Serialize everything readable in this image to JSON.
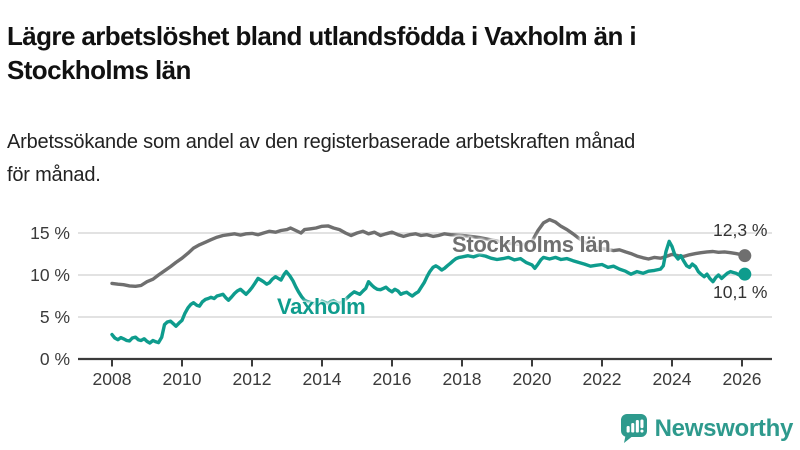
{
  "header": {
    "title_lines": [
      "Lägre arbetslöshet bland utlandsfödda i Vaxholm än i",
      "Stockholms län"
    ],
    "subtitle_lines": [
      "Arbetssökande som andel av den registerbaserade arbetskraften månad",
      "för månad."
    ]
  },
  "logo": {
    "text": "Newsworthy",
    "color": "#2e9a8d"
  },
  "colors": {
    "stockholm_line": "#6f6f6f",
    "vaxholm_line": "#0e9c8d",
    "gridline": "#d8d8d8",
    "axis": "#3b3b3b",
    "tick_label": "#3b3b3b"
  },
  "chart_data": {
    "type": "line",
    "title": "Lägre arbetslöshet bland utlandsfödda i Vaxholm än i Stockholms län",
    "subtitle": "Arbetssökande som andel av den registerbaserade arbetskraften månad för månad.",
    "xlabel": "",
    "ylabel": "",
    "unit": "%",
    "grid": "horizontal",
    "legend_position": "inline-labels",
    "xlim": [
      2007.0,
      2026.9
    ],
    "ylim": [
      0,
      17.5
    ],
    "x_ticks": [
      2008,
      2010,
      2012,
      2014,
      2016,
      2018,
      2020,
      2022,
      2024,
      2026
    ],
    "y_ticks": [
      0,
      5,
      10,
      15
    ],
    "y_tick_labels": [
      "0 %",
      "5 %",
      "10 %",
      "15 %"
    ],
    "series": [
      {
        "id": "stockholms-lan",
        "name": "Stockholms län",
        "color": "#6f6f6f",
        "end_label": "12,3 %",
        "end_value": 12.3,
        "points": [
          [
            2008.0,
            9.0
          ],
          [
            2008.17,
            8.9
          ],
          [
            2008.33,
            8.85
          ],
          [
            2008.5,
            8.7
          ],
          [
            2008.67,
            8.65
          ],
          [
            2008.83,
            8.75
          ],
          [
            2009.0,
            9.2
          ],
          [
            2009.17,
            9.5
          ],
          [
            2009.33,
            10.0
          ],
          [
            2009.5,
            10.5
          ],
          [
            2009.67,
            11.0
          ],
          [
            2009.83,
            11.5
          ],
          [
            2010.0,
            12.0
          ],
          [
            2010.17,
            12.6
          ],
          [
            2010.33,
            13.2
          ],
          [
            2010.5,
            13.6
          ],
          [
            2010.67,
            13.9
          ],
          [
            2010.83,
            14.2
          ],
          [
            2011.0,
            14.5
          ],
          [
            2011.17,
            14.7
          ],
          [
            2011.33,
            14.8
          ],
          [
            2011.5,
            14.9
          ],
          [
            2011.67,
            14.75
          ],
          [
            2011.83,
            14.9
          ],
          [
            2012.0,
            14.95
          ],
          [
            2012.17,
            14.8
          ],
          [
            2012.33,
            15.0
          ],
          [
            2012.5,
            15.2
          ],
          [
            2012.67,
            15.1
          ],
          [
            2012.83,
            15.3
          ],
          [
            2013.0,
            15.4
          ],
          [
            2013.1,
            15.6
          ],
          [
            2013.25,
            15.3
          ],
          [
            2013.4,
            15.0
          ],
          [
            2013.5,
            15.4
          ],
          [
            2013.67,
            15.5
          ],
          [
            2013.83,
            15.6
          ],
          [
            2014.0,
            15.8
          ],
          [
            2014.17,
            15.85
          ],
          [
            2014.33,
            15.6
          ],
          [
            2014.5,
            15.4
          ],
          [
            2014.67,
            15.0
          ],
          [
            2014.83,
            14.7
          ],
          [
            2015.0,
            15.0
          ],
          [
            2015.17,
            15.2
          ],
          [
            2015.33,
            14.9
          ],
          [
            2015.5,
            15.1
          ],
          [
            2015.67,
            14.7
          ],
          [
            2015.83,
            14.9
          ],
          [
            2016.0,
            15.1
          ],
          [
            2016.17,
            14.8
          ],
          [
            2016.33,
            14.6
          ],
          [
            2016.5,
            14.8
          ],
          [
            2016.67,
            14.9
          ],
          [
            2016.83,
            14.7
          ],
          [
            2017.0,
            14.8
          ],
          [
            2017.17,
            14.6
          ],
          [
            2017.33,
            14.7
          ],
          [
            2017.5,
            14.9
          ],
          [
            2017.67,
            14.8
          ],
          [
            2017.83,
            14.75
          ],
          [
            2018.0,
            14.7
          ],
          [
            2018.25,
            14.6
          ],
          [
            2018.5,
            14.45
          ],
          [
            2018.75,
            14.25
          ],
          [
            2019.0,
            14.05
          ],
          [
            2019.25,
            13.85
          ],
          [
            2019.5,
            13.7
          ],
          [
            2019.75,
            13.6
          ],
          [
            2020.0,
            14.0
          ],
          [
            2020.17,
            15.3
          ],
          [
            2020.33,
            16.2
          ],
          [
            2020.5,
            16.6
          ],
          [
            2020.67,
            16.3
          ],
          [
            2020.83,
            15.8
          ],
          [
            2021.0,
            15.4
          ],
          [
            2021.17,
            14.9
          ],
          [
            2021.33,
            14.4
          ],
          [
            2021.5,
            13.9
          ],
          [
            2021.67,
            13.5
          ],
          [
            2021.83,
            13.25
          ],
          [
            2022.0,
            13.15
          ],
          [
            2022.17,
            13.05
          ],
          [
            2022.33,
            12.9
          ],
          [
            2022.5,
            13.0
          ],
          [
            2022.67,
            12.75
          ],
          [
            2022.83,
            12.55
          ],
          [
            2023.0,
            12.25
          ],
          [
            2023.17,
            12.05
          ],
          [
            2023.33,
            11.9
          ],
          [
            2023.5,
            12.1
          ],
          [
            2023.67,
            12.0
          ],
          [
            2023.83,
            12.2
          ],
          [
            2024.0,
            12.45
          ],
          [
            2024.17,
            12.3
          ],
          [
            2024.33,
            12.2
          ],
          [
            2024.5,
            12.4
          ],
          [
            2024.67,
            12.55
          ],
          [
            2024.83,
            12.65
          ],
          [
            2025.0,
            12.75
          ],
          [
            2025.17,
            12.8
          ],
          [
            2025.33,
            12.7
          ],
          [
            2025.5,
            12.75
          ],
          [
            2025.67,
            12.65
          ],
          [
            2025.83,
            12.55
          ],
          [
            2026.0,
            12.4
          ],
          [
            2026.08,
            12.3
          ]
        ]
      },
      {
        "id": "vaxholm",
        "name": "Vaxholm",
        "color": "#0e9c8d",
        "end_label": "10,1 %",
        "end_value": 10.1,
        "points": [
          [
            2008.0,
            2.9
          ],
          [
            2008.08,
            2.5
          ],
          [
            2008.17,
            2.3
          ],
          [
            2008.25,
            2.55
          ],
          [
            2008.33,
            2.4
          ],
          [
            2008.42,
            2.2
          ],
          [
            2008.5,
            2.15
          ],
          [
            2008.58,
            2.5
          ],
          [
            2008.67,
            2.6
          ],
          [
            2008.75,
            2.3
          ],
          [
            2008.83,
            2.2
          ],
          [
            2008.92,
            2.4
          ],
          [
            2009.0,
            2.1
          ],
          [
            2009.08,
            1.9
          ],
          [
            2009.17,
            2.2
          ],
          [
            2009.25,
            2.05
          ],
          [
            2009.33,
            1.95
          ],
          [
            2009.42,
            2.6
          ],
          [
            2009.5,
            4.1
          ],
          [
            2009.58,
            4.4
          ],
          [
            2009.67,
            4.5
          ],
          [
            2009.75,
            4.2
          ],
          [
            2009.83,
            3.9
          ],
          [
            2009.92,
            4.3
          ],
          [
            2010.0,
            4.6
          ],
          [
            2010.08,
            5.4
          ],
          [
            2010.17,
            6.1
          ],
          [
            2010.25,
            6.5
          ],
          [
            2010.33,
            6.7
          ],
          [
            2010.42,
            6.4
          ],
          [
            2010.5,
            6.3
          ],
          [
            2010.58,
            6.8
          ],
          [
            2010.67,
            7.1
          ],
          [
            2010.75,
            7.2
          ],
          [
            2010.83,
            7.35
          ],
          [
            2010.92,
            7.2
          ],
          [
            2011.0,
            7.5
          ],
          [
            2011.08,
            7.6
          ],
          [
            2011.17,
            7.7
          ],
          [
            2011.25,
            7.3
          ],
          [
            2011.33,
            7.0
          ],
          [
            2011.42,
            7.4
          ],
          [
            2011.5,
            7.8
          ],
          [
            2011.58,
            8.1
          ],
          [
            2011.67,
            8.3
          ],
          [
            2011.75,
            8.0
          ],
          [
            2011.83,
            7.7
          ],
          [
            2011.92,
            8.1
          ],
          [
            2012.0,
            8.5
          ],
          [
            2012.08,
            9.0
          ],
          [
            2012.17,
            9.6
          ],
          [
            2012.25,
            9.4
          ],
          [
            2012.33,
            9.2
          ],
          [
            2012.42,
            8.9
          ],
          [
            2012.5,
            9.1
          ],
          [
            2012.58,
            9.5
          ],
          [
            2012.67,
            9.8
          ],
          [
            2012.75,
            9.6
          ],
          [
            2012.83,
            9.4
          ],
          [
            2012.92,
            10.1
          ],
          [
            2012.98,
            10.4
          ],
          [
            2013.08,
            9.9
          ],
          [
            2013.17,
            9.3
          ],
          [
            2013.25,
            8.6
          ],
          [
            2013.33,
            8.0
          ],
          [
            2013.42,
            7.4
          ],
          [
            2013.5,
            7.0
          ],
          [
            2013.58,
            6.85
          ],
          [
            2013.67,
            6.75
          ],
          [
            2013.75,
            6.6
          ],
          [
            2013.83,
            6.7
          ],
          [
            2013.92,
            6.55
          ],
          [
            2014.0,
            6.9
          ],
          [
            2014.08,
            6.75
          ],
          [
            2014.17,
            6.6
          ],
          [
            2014.25,
            6.85
          ],
          [
            2014.33,
            6.95
          ],
          [
            2014.42,
            6.7
          ],
          [
            2014.5,
            6.6
          ],
          [
            2014.58,
            6.8
          ],
          [
            2014.67,
            7.1
          ],
          [
            2014.75,
            7.4
          ],
          [
            2014.83,
            7.7
          ],
          [
            2014.92,
            8.0
          ],
          [
            2015.0,
            7.85
          ],
          [
            2015.08,
            7.7
          ],
          [
            2015.17,
            8.1
          ],
          [
            2015.25,
            8.4
          ],
          [
            2015.33,
            9.2
          ],
          [
            2015.42,
            8.8
          ],
          [
            2015.5,
            8.5
          ],
          [
            2015.58,
            8.3
          ],
          [
            2015.67,
            8.25
          ],
          [
            2015.75,
            8.4
          ],
          [
            2015.83,
            8.55
          ],
          [
            2015.92,
            8.2
          ],
          [
            2016.0,
            8.0
          ],
          [
            2016.08,
            8.3
          ],
          [
            2016.17,
            8.1
          ],
          [
            2016.25,
            7.7
          ],
          [
            2016.33,
            7.85
          ],
          [
            2016.42,
            7.95
          ],
          [
            2016.5,
            7.7
          ],
          [
            2016.58,
            7.5
          ],
          [
            2016.67,
            7.8
          ],
          [
            2016.75,
            8.0
          ],
          [
            2016.83,
            8.5
          ],
          [
            2016.92,
            9.1
          ],
          [
            2017.0,
            9.8
          ],
          [
            2017.08,
            10.4
          ],
          [
            2017.17,
            10.9
          ],
          [
            2017.25,
            11.1
          ],
          [
            2017.33,
            10.9
          ],
          [
            2017.42,
            10.6
          ],
          [
            2017.5,
            10.8
          ],
          [
            2017.58,
            11.1
          ],
          [
            2017.67,
            11.4
          ],
          [
            2017.75,
            11.7
          ],
          [
            2017.83,
            11.95
          ],
          [
            2017.92,
            12.1
          ],
          [
            2018.0,
            12.15
          ],
          [
            2018.17,
            12.3
          ],
          [
            2018.33,
            12.15
          ],
          [
            2018.5,
            12.4
          ],
          [
            2018.67,
            12.25
          ],
          [
            2018.83,
            12.0
          ],
          [
            2019.0,
            11.85
          ],
          [
            2019.17,
            11.95
          ],
          [
            2019.33,
            12.1
          ],
          [
            2019.5,
            11.8
          ],
          [
            2019.67,
            11.95
          ],
          [
            2019.83,
            11.5
          ],
          [
            2020.0,
            11.2
          ],
          [
            2020.08,
            10.8
          ],
          [
            2020.17,
            11.3
          ],
          [
            2020.25,
            11.8
          ],
          [
            2020.33,
            12.1
          ],
          [
            2020.5,
            11.9
          ],
          [
            2020.67,
            12.1
          ],
          [
            2020.83,
            11.85
          ],
          [
            2021.0,
            11.95
          ],
          [
            2021.17,
            11.7
          ],
          [
            2021.33,
            11.5
          ],
          [
            2021.5,
            11.3
          ],
          [
            2021.67,
            11.05
          ],
          [
            2021.83,
            11.15
          ],
          [
            2022.0,
            11.25
          ],
          [
            2022.17,
            10.9
          ],
          [
            2022.33,
            11.05
          ],
          [
            2022.5,
            10.7
          ],
          [
            2022.67,
            10.45
          ],
          [
            2022.83,
            10.1
          ],
          [
            2023.0,
            10.4
          ],
          [
            2023.17,
            10.2
          ],
          [
            2023.33,
            10.45
          ],
          [
            2023.5,
            10.55
          ],
          [
            2023.67,
            10.7
          ],
          [
            2023.75,
            11.1
          ],
          [
            2023.83,
            12.8
          ],
          [
            2023.92,
            14.0
          ],
          [
            2024.0,
            13.4
          ],
          [
            2024.08,
            12.4
          ],
          [
            2024.17,
            11.9
          ],
          [
            2024.25,
            12.3
          ],
          [
            2024.33,
            11.7
          ],
          [
            2024.42,
            11.1
          ],
          [
            2024.5,
            10.9
          ],
          [
            2024.58,
            11.3
          ],
          [
            2024.67,
            11.0
          ],
          [
            2024.75,
            10.4
          ],
          [
            2024.83,
            10.1
          ],
          [
            2024.92,
            9.8
          ],
          [
            2025.0,
            10.1
          ],
          [
            2025.08,
            9.6
          ],
          [
            2025.17,
            9.2
          ],
          [
            2025.25,
            9.7
          ],
          [
            2025.33,
            10.0
          ],
          [
            2025.42,
            9.6
          ],
          [
            2025.5,
            9.9
          ],
          [
            2025.58,
            10.2
          ],
          [
            2025.67,
            10.4
          ],
          [
            2025.75,
            10.3
          ],
          [
            2025.83,
            10.2
          ],
          [
            2025.92,
            10.0
          ],
          [
            2026.0,
            10.05
          ],
          [
            2026.08,
            10.1
          ]
        ]
      }
    ]
  }
}
